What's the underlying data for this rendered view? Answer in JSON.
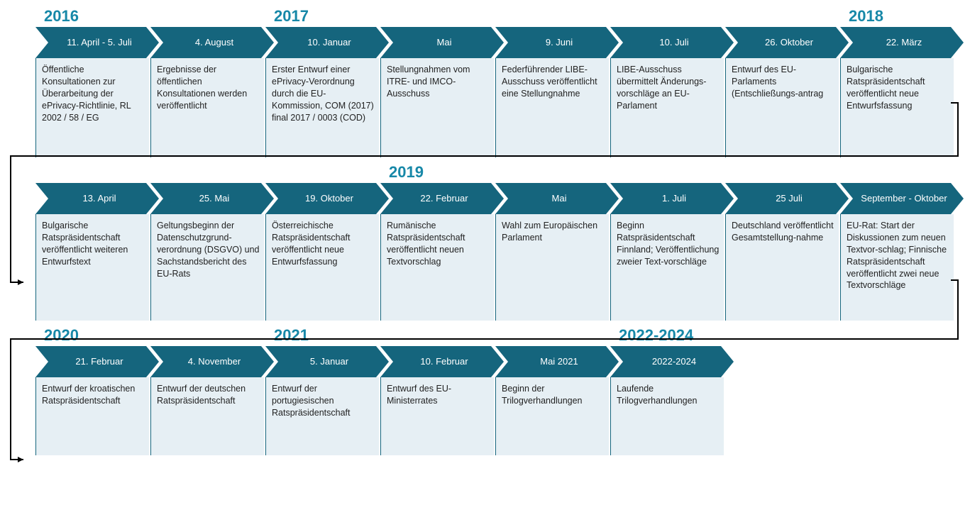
{
  "colors": {
    "arrow_fill": "#15657d",
    "arrow_text": "#ffffff",
    "desc_bg": "#e6eff4",
    "desc_border": "#15657d",
    "year_color": "#1788a8",
    "connector": "#000000",
    "background": "#ffffff"
  },
  "typography": {
    "year_fontsize": 22,
    "arrow_fontsize": 13,
    "desc_fontsize": 12.5,
    "font_family": "Arial"
  },
  "layout": {
    "item_width": 160,
    "arrow_height": 44,
    "arrow_notch": 18,
    "desc_min_height_row1": 140,
    "desc_min_height_row2": 150,
    "desc_min_height_row3": 110
  },
  "rows": [
    {
      "groups": [
        {
          "year": "2016",
          "items": [
            {
              "date": "11. April - 5. Juli",
              "desc": "Öffentliche Konsultationen zur Überarbeitung der ePrivacy-Richtlinie, RL 2002 / 58 / EG"
            },
            {
              "date": "4. August",
              "desc": "Ergebnisse der öffentlichen Konsultationen werden veröffentlicht"
            }
          ]
        },
        {
          "year": "2017",
          "items": [
            {
              "date": "10. Januar",
              "desc": "Erster Entwurf einer ePrivacy-Verordnung durch die EU-Kommission, COM (2017) final 2017 / 0003 (COD)"
            },
            {
              "date": "Mai",
              "desc": "Stellungnahmen vom ITRE- und IMCO-Ausschuss"
            },
            {
              "date": "9. Juni",
              "desc": "Federführender LIBE-Ausschuss veröffentlicht eine Stellungnahme"
            },
            {
              "date": "10. Juli",
              "desc": "LIBE-Ausschuss übermittelt Änderungs-vorschläge an EU-Parlament"
            },
            {
              "date": "26. Oktober",
              "desc": "Entwurf des EU-Parlaments (Entschließungs-antrag"
            }
          ]
        },
        {
          "year": "2018",
          "items": [
            {
              "date": "22. März",
              "desc": "Bulgarische Ratspräsidentschaft veröffentlicht neue Entwurfsfassung"
            }
          ]
        }
      ]
    },
    {
      "groups": [
        {
          "year": "",
          "items": [
            {
              "date": "13. April",
              "desc": "Bulgarische Ratspräsidentschaft veröffentlicht weiteren Entwurfstext"
            },
            {
              "date": "25. Mai",
              "desc": "Geltungsbeginn der Datenschutzgrund-verordnung (DSGVO) und Sachstandsbericht des EU-Rats"
            },
            {
              "date": "19. Oktober",
              "desc": "Österreichische Ratspräsidentschaft veröffentlicht neue Entwurfsfassung"
            }
          ]
        },
        {
          "year": "2019",
          "items": [
            {
              "date": "22. Februar",
              "desc": "Rumänische Ratspräsidentschaft veröffentlicht neuen Textvorschlag"
            },
            {
              "date": "Mai",
              "desc": "Wahl zum Europäischen Parlament"
            },
            {
              "date": "1. Juli",
              "desc": "Beginn Ratspräsidentschaft Finnland; Veröffentlichung zweier Text-vorschläge"
            },
            {
              "date": "25 Juli",
              "desc": "Deutschland veröffentlicht Gesamtstellung-nahme"
            },
            {
              "date": "September - Oktober",
              "desc": "EU-Rat: Start der Diskussionen zum neuen Textvor-schlag; Finnische Ratspräsidentschaft veröffentlicht zwei neue Textvorschläge"
            }
          ]
        }
      ]
    },
    {
      "groups": [
        {
          "year": "2020",
          "items": [
            {
              "date": "21. Februar",
              "desc": "Entwurf der kroatischen Ratspräsidentschaft"
            },
            {
              "date": "4. November",
              "desc": "Entwurf der deutschen Ratspräsidentschaft"
            }
          ]
        },
        {
          "year": "2021",
          "items": [
            {
              "date": "5. Januar",
              "desc": "Entwurf der portugiesischen Ratspräsidentschaft"
            },
            {
              "date": "10. Februar",
              "desc": "Entwurf des EU-Ministerrates"
            },
            {
              "date": "Mai 2021",
              "desc": "Beginn der Trilogverhandlungen"
            }
          ]
        },
        {
          "year": "2022-2024",
          "items": [
            {
              "date": "2022-2024",
              "desc": "Laufende Trilogverhandlungen"
            }
          ]
        }
      ]
    }
  ]
}
